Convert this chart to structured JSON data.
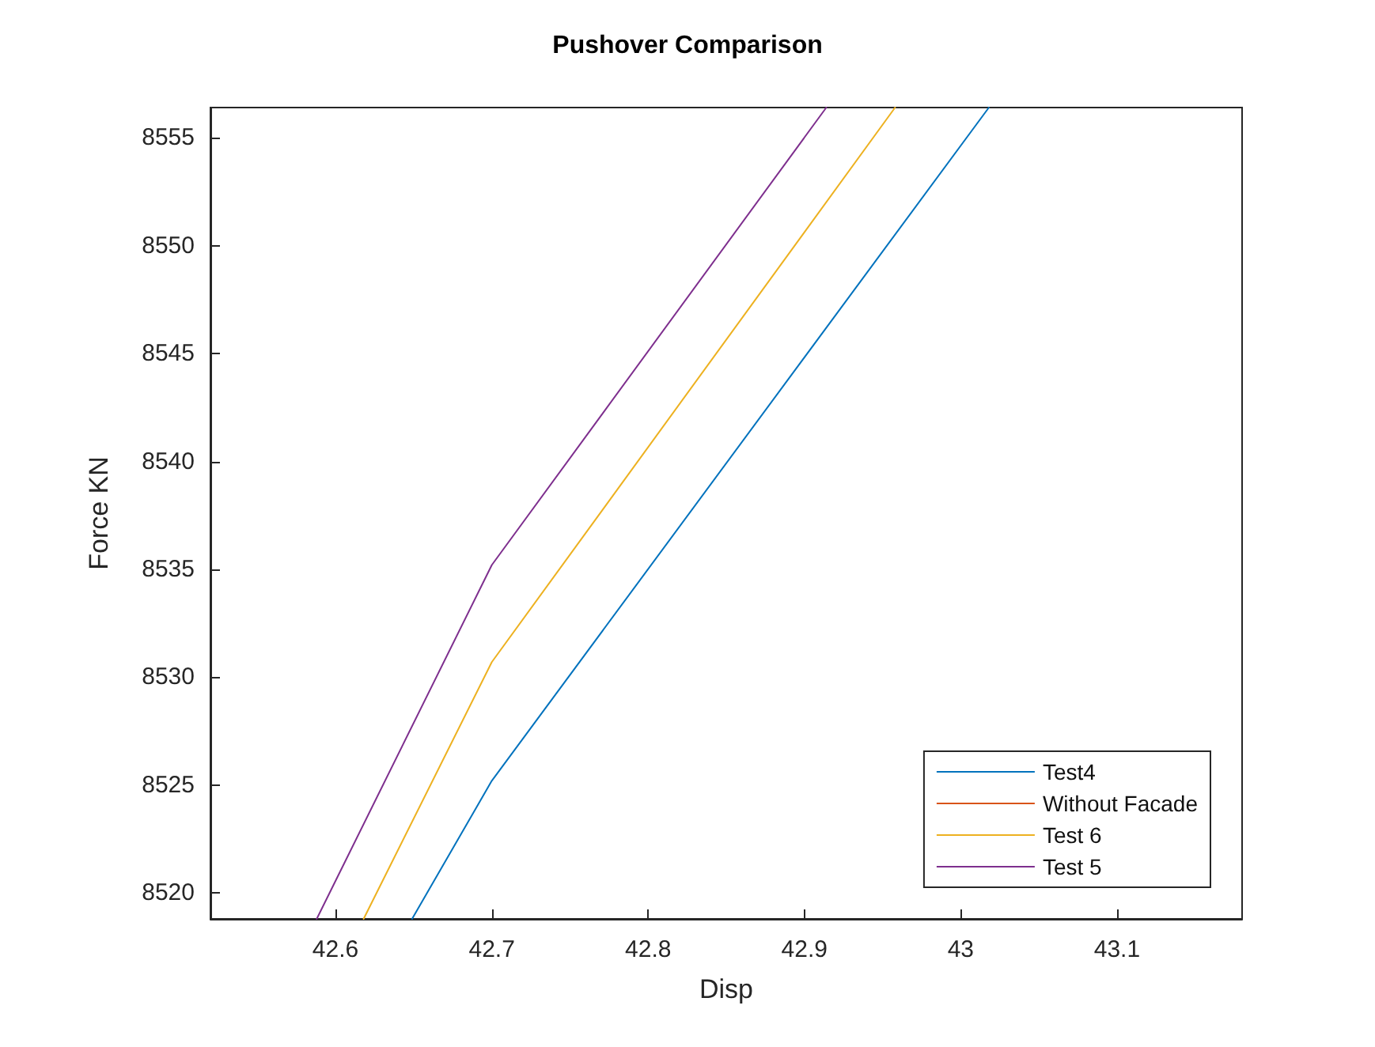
{
  "chart_data": {
    "type": "line",
    "title": "Pushover Comparison",
    "xlabel": "Disp",
    "ylabel": "Force KN",
    "xlim": [
      42.52,
      43.18
    ],
    "xticks": [
      42.6,
      42.7,
      42.8,
      42.9,
      43,
      43.1
    ],
    "ylim": [
      8518.8,
      8556.4
    ],
    "yticks": [
      8520,
      8525,
      8530,
      8535,
      8540,
      8545,
      8550,
      8555
    ],
    "legend": "bottom right",
    "grid": false,
    "marker": "none",
    "line_style": "solid",
    "series": [
      {
        "name": "Test4",
        "color": "#0072bd",
        "x": [
          42.649,
          42.7,
          43.018
        ],
        "values": [
          8518.8,
          8525.2,
          8556.4
        ]
      },
      {
        "name": "Without Facade",
        "color": "#d95319"
      },
      {
        "name": "Test 6",
        "color": "#edb120",
        "x": [
          42.618,
          42.7,
          42.958
        ],
        "values": [
          8518.8,
          8530.7,
          8556.4
        ]
      },
      {
        "name": "Test 5",
        "color": "#7e2f8e",
        "x": [
          42.588,
          42.7,
          42.914
        ],
        "values": [
          8518.8,
          8535.2,
          8556.4
        ]
      }
    ]
  }
}
